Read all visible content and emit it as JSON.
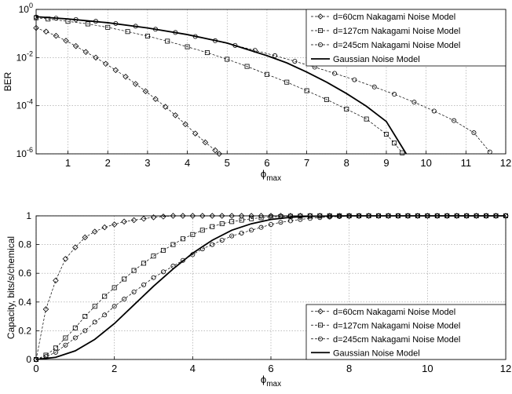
{
  "chart_data": [
    {
      "type": "line",
      "xlabel": "ϕ",
      "xlabel_sub": "max",
      "ylabel": "BER",
      "xlim": [
        0.2,
        12
      ],
      "ylim": [
        1e-06,
        1
      ],
      "yscale": "log",
      "grid": true,
      "legend_position": "top-right",
      "x_ticks": [
        1,
        2,
        3,
        4,
        5,
        6,
        7,
        8,
        9,
        10,
        11,
        12
      ],
      "x_tick_labels": [
        "1",
        "2",
        "3",
        "4",
        "5",
        "6",
        "7",
        "8",
        "9",
        "10",
        "11",
        "12"
      ],
      "y_ticks": [
        1,
        0.01,
        0.0001,
        1e-06
      ],
      "y_tick_labels": [
        {
          "base": "10",
          "exp": "0"
        },
        {
          "base": "10",
          "exp": "-2"
        },
        {
          "base": "10",
          "exp": "-4"
        },
        {
          "base": "10",
          "exp": "-6"
        }
      ],
      "series": [
        {
          "name": "d=60cm Nakagami Noise Model",
          "marker": "diamond",
          "line_style": "dashed",
          "x": [
            0.2,
            0.45,
            0.7,
            0.95,
            1.2,
            1.45,
            1.7,
            1.95,
            2.2,
            2.45,
            2.7,
            2.95,
            3.2,
            3.45,
            3.7,
            3.95,
            4.2,
            4.45,
            4.7,
            4.8
          ],
          "y": [
            0.17,
            0.12,
            0.08,
            0.05,
            0.03,
            0.017,
            0.01,
            0.0055,
            0.003,
            0.0016,
            0.0008,
            0.0004,
            0.00019,
            9e-05,
            4e-05,
            1.7e-05,
            7e-06,
            3e-06,
            1.4e-06,
            1e-06
          ]
        },
        {
          "name": "d=127cm Nakagami Noise Model",
          "marker": "square",
          "line_style": "dashed",
          "x": [
            0.2,
            0.5,
            1,
            1.5,
            2,
            2.5,
            3,
            3.5,
            4,
            4.5,
            5,
            5.5,
            6,
            6.5,
            7,
            7.5,
            8,
            8.5,
            9,
            9.2,
            9.4
          ],
          "y": [
            0.45,
            0.4,
            0.32,
            0.25,
            0.18,
            0.12,
            0.078,
            0.048,
            0.028,
            0.016,
            0.0085,
            0.0043,
            0.002,
            0.00095,
            0.00042,
            0.00018,
            7.2e-05,
            2.8e-05,
            6.5e-06,
            2.8e-06,
            1.1e-06
          ]
        },
        {
          "name": "d=245cm Nakagami Noise Model",
          "marker": "circle",
          "line_style": "dashed",
          "x": [
            0.2,
            0.7,
            1.2,
            1.7,
            2.2,
            2.7,
            3.2,
            3.7,
            4.2,
            4.7,
            5.2,
            5.7,
            6.2,
            6.7,
            7.2,
            7.7,
            8.2,
            8.7,
            9.2,
            9.7,
            10.2,
            10.7,
            11.2,
            11.6
          ],
          "y": [
            0.48,
            0.43,
            0.38,
            0.32,
            0.26,
            0.2,
            0.15,
            0.11,
            0.075,
            0.05,
            0.032,
            0.02,
            0.012,
            0.007,
            0.004,
            0.0022,
            0.0012,
            0.0006,
            0.0003,
            0.00014,
            6e-05,
            2.4e-05,
            7.5e-06,
            1.2e-06
          ]
        },
        {
          "name": "Gaussian Noise Model",
          "marker": "none",
          "line_style": "solid",
          "x": [
            0.2,
            1,
            2,
            3,
            4,
            5,
            6,
            6.5,
            7,
            7.5,
            8,
            8.5,
            9,
            9.5
          ],
          "y": [
            0.5,
            0.4,
            0.28,
            0.17,
            0.09,
            0.04,
            0.012,
            0.006,
            0.0025,
            0.00095,
            0.00032,
            9.5e-05,
            2.2e-05,
            1e-06
          ]
        }
      ]
    },
    {
      "type": "line",
      "xlabel": "ϕ",
      "xlabel_sub": "max",
      "ylabel": "Capacity, bits/s/chemical",
      "xlim": [
        0,
        12
      ],
      "ylim": [
        0,
        1
      ],
      "grid": true,
      "legend_position": "bottom-right",
      "x_ticks": [
        0,
        2,
        4,
        6,
        8,
        10,
        12
      ],
      "x_tick_labels": [
        "0",
        "2",
        "4",
        "6",
        "8",
        "10",
        "12"
      ],
      "y_ticks": [
        0,
        0.2,
        0.4,
        0.6,
        0.8,
        1
      ],
      "y_tick_labels": [
        "0",
        "0.2",
        "0.4",
        "0.6",
        "0.8",
        "1"
      ],
      "series": [
        {
          "name": "d=60cm Nakagami Noise Model",
          "marker": "diamond",
          "line_style": "dashed",
          "x": [
            0,
            0.25,
            0.5,
            0.75,
            1,
            1.25,
            1.5,
            1.75,
            2,
            2.25,
            2.5,
            2.75,
            3,
            3.25,
            3.5,
            3.75,
            4,
            4.25,
            4.5,
            4.75,
            5,
            5.25,
            5.5,
            5.75,
            6,
            6.25,
            6.5,
            6.75,
            7,
            7.25,
            7.5,
            7.75,
            8,
            8.25,
            8.5,
            8.75,
            9,
            9.25,
            9.5,
            9.75,
            10,
            10.25,
            10.5,
            10.75,
            11,
            11.25,
            11.5,
            11.75,
            12
          ],
          "y": [
            0,
            0.35,
            0.55,
            0.7,
            0.78,
            0.85,
            0.89,
            0.92,
            0.94,
            0.96,
            0.97,
            0.98,
            0.99,
            0.995,
            1,
            1,
            1,
            1,
            1,
            1,
            1,
            1,
            1,
            1,
            1,
            1,
            1,
            1,
            1,
            1,
            1,
            1,
            1,
            1,
            1,
            1,
            1,
            1,
            1,
            1,
            1,
            1,
            1,
            1,
            1,
            1,
            1,
            1,
            1
          ]
        },
        {
          "name": "d=127cm Nakagami Noise Model",
          "marker": "square",
          "line_style": "dashed",
          "x": [
            0,
            0.25,
            0.5,
            0.75,
            1,
            1.25,
            1.5,
            1.75,
            2,
            2.25,
            2.5,
            2.75,
            3,
            3.25,
            3.5,
            3.75,
            4,
            4.25,
            4.5,
            4.75,
            5,
            5.25,
            5.5,
            5.75,
            6,
            6.25,
            6.5,
            6.75,
            7,
            7.25,
            7.5,
            7.75,
            8,
            8.25,
            8.5,
            8.75,
            9,
            9.25,
            9.5,
            9.75,
            10,
            10.25,
            10.5,
            10.75,
            11,
            11.25,
            11.5,
            11.75,
            12
          ],
          "y": [
            0,
            0.03,
            0.08,
            0.15,
            0.22,
            0.3,
            0.37,
            0.44,
            0.5,
            0.56,
            0.62,
            0.67,
            0.72,
            0.76,
            0.8,
            0.84,
            0.87,
            0.9,
            0.925,
            0.945,
            0.96,
            0.97,
            0.98,
            0.987,
            0.992,
            0.995,
            0.997,
            0.998,
            1,
            1,
            1,
            1,
            1,
            1,
            1,
            1,
            1,
            1,
            1,
            1,
            1,
            1,
            1,
            1,
            1,
            1,
            1,
            1,
            1
          ]
        },
        {
          "name": "d=245cm Nakagami Noise Model",
          "marker": "circle",
          "line_style": "dashed",
          "x": [
            0,
            0.25,
            0.5,
            0.75,
            1,
            1.25,
            1.5,
            1.75,
            2,
            2.25,
            2.5,
            2.75,
            3,
            3.25,
            3.5,
            3.75,
            4,
            4.25,
            4.5,
            4.75,
            5,
            5.25,
            5.5,
            5.75,
            6,
            6.25,
            6.5,
            6.75,
            7,
            7.25,
            7.5,
            7.75,
            8,
            8.25,
            8.5,
            8.75,
            9,
            9.25,
            9.5,
            9.75,
            10,
            10.25,
            10.5,
            10.75,
            11,
            11.25,
            11.5,
            11.75,
            12
          ],
          "y": [
            0,
            0.02,
            0.05,
            0.1,
            0.15,
            0.2,
            0.26,
            0.31,
            0.37,
            0.42,
            0.47,
            0.52,
            0.57,
            0.61,
            0.65,
            0.69,
            0.73,
            0.77,
            0.8,
            0.83,
            0.86,
            0.88,
            0.9,
            0.92,
            0.94,
            0.955,
            0.965,
            0.975,
            0.982,
            0.988,
            0.992,
            0.995,
            0.997,
            0.998,
            1,
            1,
            1,
            1,
            1,
            1,
            1,
            1,
            1,
            1,
            1,
            1,
            1,
            1,
            1
          ]
        },
        {
          "name": "Gaussian Noise Model",
          "marker": "none",
          "line_style": "solid",
          "x": [
            0,
            0.5,
            1,
            1.5,
            2,
            2.5,
            3,
            3.5,
            4,
            4.5,
            5,
            5.5,
            6,
            6.5,
            7,
            8,
            9,
            10,
            11,
            12
          ],
          "y": [
            0,
            0.015,
            0.06,
            0.14,
            0.25,
            0.38,
            0.51,
            0.63,
            0.74,
            0.83,
            0.9,
            0.945,
            0.975,
            0.99,
            0.997,
            1,
            1,
            1,
            1,
            1
          ]
        }
      ]
    }
  ]
}
